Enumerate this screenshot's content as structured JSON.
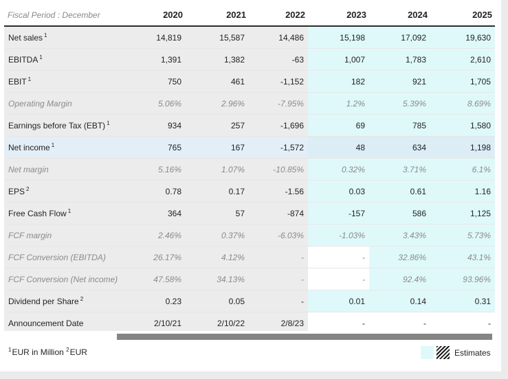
{
  "header": {
    "period_label": "Fiscal Period : December",
    "years": [
      "2020",
      "2021",
      "2022",
      "2023",
      "2024",
      "2025"
    ]
  },
  "rows": [
    {
      "label": "Net sales",
      "note": "1",
      "values": [
        "14,819",
        "15,587",
        "14,486",
        "15,198",
        "17,092",
        "19,630"
      ]
    },
    {
      "label": "EBITDA",
      "note": "1",
      "values": [
        "1,391",
        "1,382",
        "-63",
        "1,007",
        "1,783",
        "2,610"
      ]
    },
    {
      "label": "EBIT",
      "note": "1",
      "values": [
        "750",
        "461",
        "-1,152",
        "182",
        "921",
        "1,705"
      ]
    },
    {
      "label": "Operating Margin",
      "note": "",
      "values": [
        "5.06%",
        "2.96%",
        "-7.95%",
        "1.2%",
        "5.39%",
        "8.69%"
      ]
    },
    {
      "label": "Earnings before Tax (EBT)",
      "note": "1",
      "values": [
        "934",
        "257",
        "-1,696",
        "69",
        "785",
        "1,580"
      ]
    },
    {
      "label": "Net income",
      "note": "1",
      "values": [
        "765",
        "167",
        "-1,572",
        "48",
        "634",
        "1,198"
      ]
    },
    {
      "label": "Net margin",
      "note": "",
      "values": [
        "5.16%",
        "1.07%",
        "-10.85%",
        "0.32%",
        "3.71%",
        "6.1%"
      ]
    },
    {
      "label": "EPS",
      "note": "2",
      "values": [
        "0.78",
        "0.17",
        "-1.56",
        "0.03",
        "0.61",
        "1.16"
      ]
    },
    {
      "label": "Free Cash Flow",
      "note": "1",
      "values": [
        "364",
        "57",
        "-874",
        "-157",
        "586",
        "1,125"
      ]
    },
    {
      "label": "FCF margin",
      "note": "",
      "values": [
        "2.46%",
        "0.37%",
        "-6.03%",
        "-1.03%",
        "3.43%",
        "5.73%"
      ]
    },
    {
      "label": "FCF Conversion (EBITDA)",
      "note": "",
      "values": [
        "26.17%",
        "4.12%",
        "-",
        "-",
        "32.86%",
        "43.1%"
      ]
    },
    {
      "label": "FCF Conversion (Net income)",
      "note": "",
      "values": [
        "47.58%",
        "34.13%",
        "-",
        "-",
        "92.4%",
        "93.96%"
      ]
    },
    {
      "label": "Dividend per Share",
      "note": "2",
      "values": [
        "0.23",
        "0.05",
        "-",
        "0.01",
        "0.14",
        "0.31"
      ]
    },
    {
      "label": "Announcement Date",
      "note": "",
      "values": [
        "2/10/21",
        "2/10/22",
        "2/8/23",
        "-",
        "-",
        "-"
      ]
    }
  ],
  "footnote": {
    "note1_marker": "1",
    "note1_text": "EUR in Million ",
    "note2_marker": "2",
    "note2_text": "EUR"
  },
  "legend": {
    "estimates_label": "Estimates"
  },
  "colors": {
    "estimate_bg": "#dff9fb",
    "actual_bg": "#ececec",
    "highlight_row_bg": "#e3eef7"
  }
}
